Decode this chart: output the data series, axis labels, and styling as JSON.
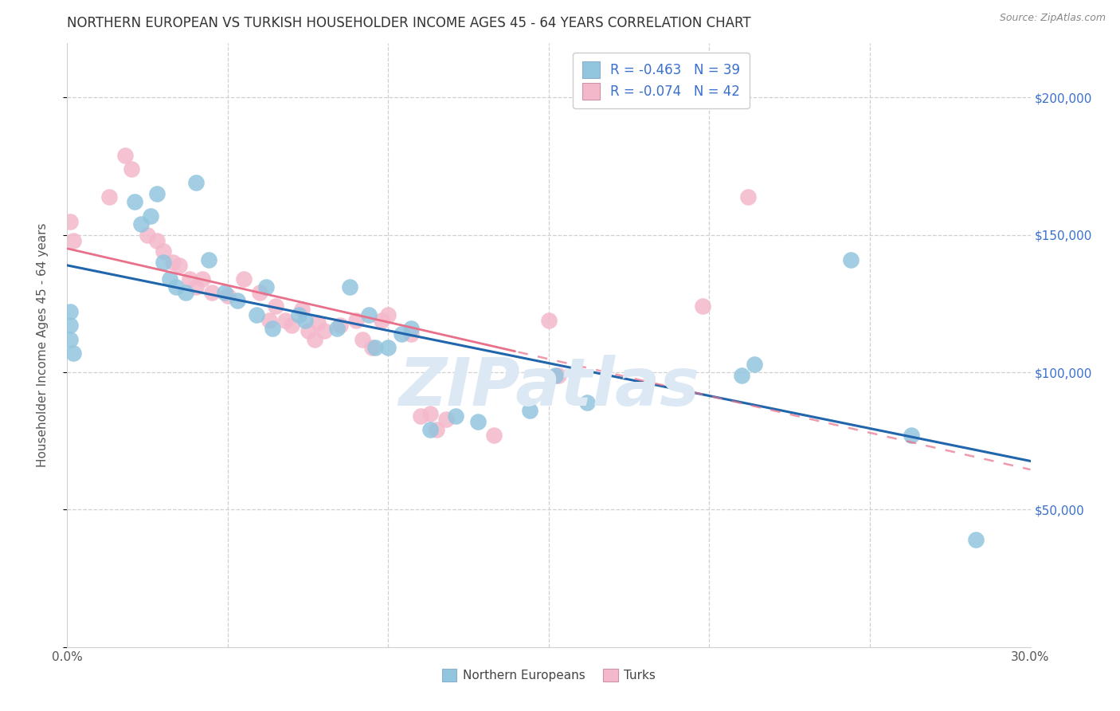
{
  "title": "NORTHERN EUROPEAN VS TURKISH HOUSEHOLDER INCOME AGES 45 - 64 YEARS CORRELATION CHART",
  "source": "Source: ZipAtlas.com",
  "xlim": [
    0.0,
    0.3
  ],
  "ylim": [
    0,
    220000
  ],
  "legend_blue_r": "-0.463",
  "legend_blue_n": "39",
  "legend_pink_r": "-0.074",
  "legend_pink_n": "42",
  "legend_label_blue": "Northern Europeans",
  "legend_label_pink": "Turks",
  "blue_color": "#92c5de",
  "pink_color": "#f4b8cb",
  "blue_line_color": "#2166ac",
  "pink_line_color": "#e8708a",
  "title_color": "#333333",
  "axis_label_color": "#555555",
  "tick_label_color_right": "#3a6fcc",
  "watermark_text": "ZIPatlas",
  "watermark_color": "#dce8f4",
  "blue_x": [
    0.001,
    0.001,
    0.001,
    0.002,
    0.021,
    0.023,
    0.026,
    0.028,
    0.03,
    0.032,
    0.034,
    0.037,
    0.04,
    0.044,
    0.049,
    0.053,
    0.059,
    0.062,
    0.064,
    0.072,
    0.074,
    0.084,
    0.088,
    0.094,
    0.096,
    0.1,
    0.104,
    0.107,
    0.113,
    0.121,
    0.128,
    0.144,
    0.152,
    0.162,
    0.21,
    0.214,
    0.244,
    0.263,
    0.283
  ],
  "blue_y": [
    122000,
    117000,
    112000,
    107000,
    162000,
    154000,
    157000,
    165000,
    140000,
    134000,
    131000,
    129000,
    169000,
    141000,
    129000,
    126000,
    121000,
    131000,
    116000,
    121000,
    119000,
    116000,
    131000,
    121000,
    109000,
    109000,
    114000,
    116000,
    79000,
    84000,
    82000,
    86000,
    99000,
    89000,
    99000,
    103000,
    141000,
    77000,
    39000
  ],
  "pink_x": [
    0.001,
    0.002,
    0.013,
    0.018,
    0.02,
    0.025,
    0.028,
    0.03,
    0.033,
    0.035,
    0.038,
    0.04,
    0.042,
    0.045,
    0.05,
    0.055,
    0.06,
    0.063,
    0.065,
    0.068,
    0.07,
    0.073,
    0.075,
    0.077,
    0.078,
    0.08,
    0.085,
    0.09,
    0.092,
    0.095,
    0.098,
    0.1,
    0.107,
    0.11,
    0.113,
    0.115,
    0.118,
    0.133,
    0.15,
    0.153,
    0.198,
    0.212
  ],
  "pink_y": [
    155000,
    148000,
    164000,
    179000,
    174000,
    150000,
    148000,
    144000,
    140000,
    139000,
    134000,
    131000,
    134000,
    129000,
    128000,
    134000,
    129000,
    119000,
    124000,
    119000,
    117000,
    123000,
    115000,
    112000,
    118000,
    115000,
    117000,
    119000,
    112000,
    109000,
    119000,
    121000,
    114000,
    84000,
    85000,
    79000,
    83000,
    77000,
    119000,
    99000,
    124000,
    164000
  ]
}
